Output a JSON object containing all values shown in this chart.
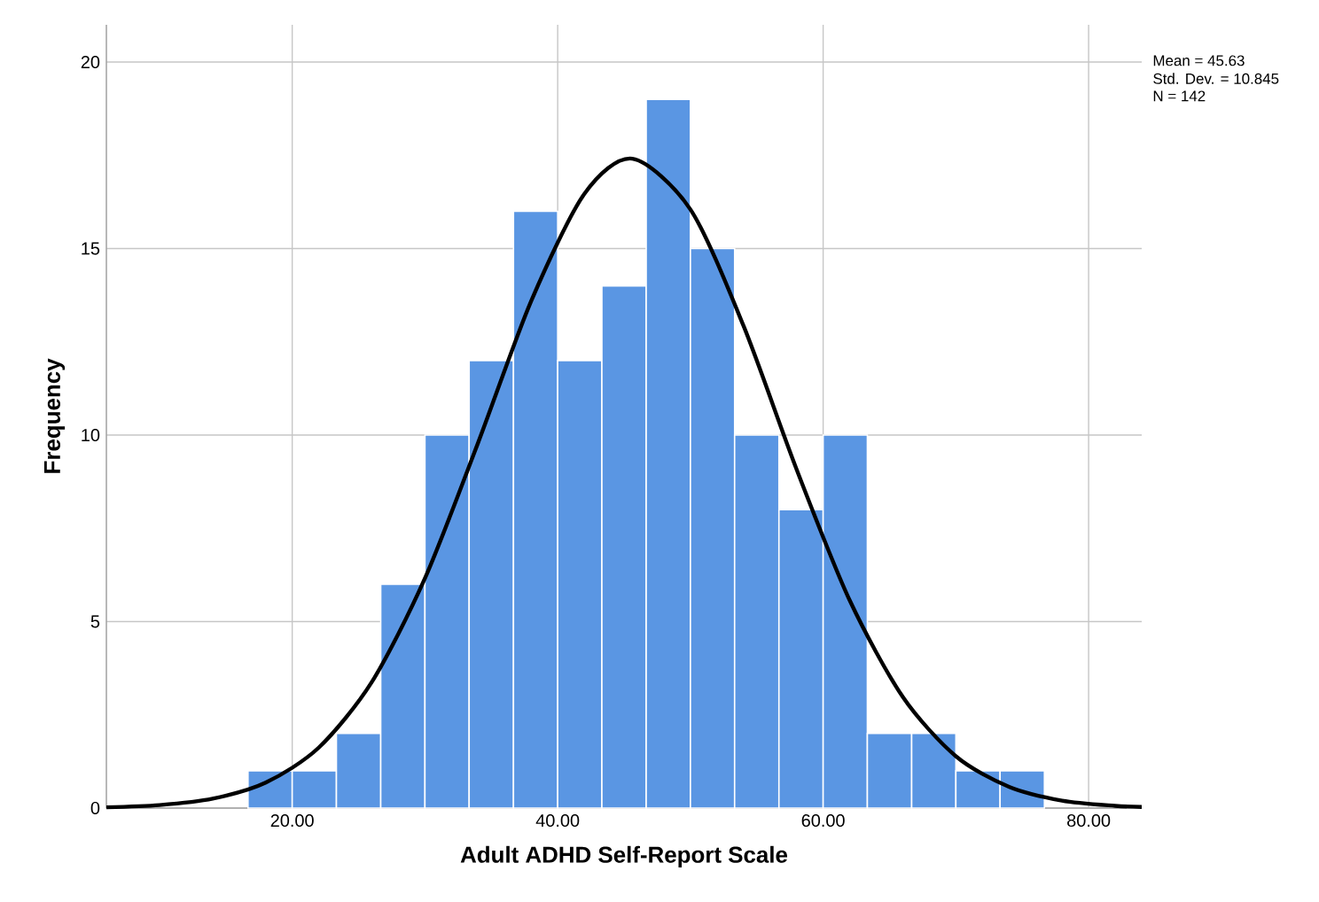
{
  "chart_data": {
    "type": "histogram",
    "xlabel": "Adult ADHD Self-Report Scale",
    "ylabel": "Frequency",
    "bins": [
      16.67,
      20,
      23.33,
      26.67,
      30,
      33.33,
      36.67,
      40,
      43.33,
      46.67,
      50,
      53.33,
      56.67,
      60,
      63.33,
      66.67,
      70,
      73.33,
      76.67
    ],
    "values": [
      1,
      1,
      2,
      6,
      10,
      12,
      16,
      12,
      14,
      19,
      15,
      10,
      8,
      10,
      2,
      2,
      1,
      1
    ],
    "color": "#5a96e3",
    "series": [
      {
        "type": "line",
        "color": "#000000",
        "x": [
          6,
          10,
          14,
          18,
          22,
          26,
          30,
          34,
          38,
          42,
          45.63,
          50,
          54,
          58,
          62,
          66,
          70,
          74,
          78,
          82,
          84
        ],
        "values": [
          0.02,
          0.08,
          0.25,
          0.68,
          1.62,
          3.38,
          6.16,
          9.79,
          13.59,
          16.46,
          17.41,
          16.05,
          12.93,
          9.08,
          5.57,
          2.98,
          1.39,
          0.57,
          0.2,
          0.06,
          0.03
        ]
      }
    ],
    "xlim": [
      6,
      84
    ],
    "ylim": [
      0,
      21
    ],
    "xticks": [
      {
        "value": 20,
        "label": "20.00"
      },
      {
        "value": 40,
        "label": "40.00"
      },
      {
        "value": 60,
        "label": "60.00"
      },
      {
        "value": 80,
        "label": "80.00"
      }
    ],
    "yticks": [
      0,
      5,
      10,
      15,
      20
    ],
    "grid": true,
    "annotations": [
      "Mean = 45.63",
      "Std. Dev. = 10.845",
      "N = 142"
    ]
  }
}
